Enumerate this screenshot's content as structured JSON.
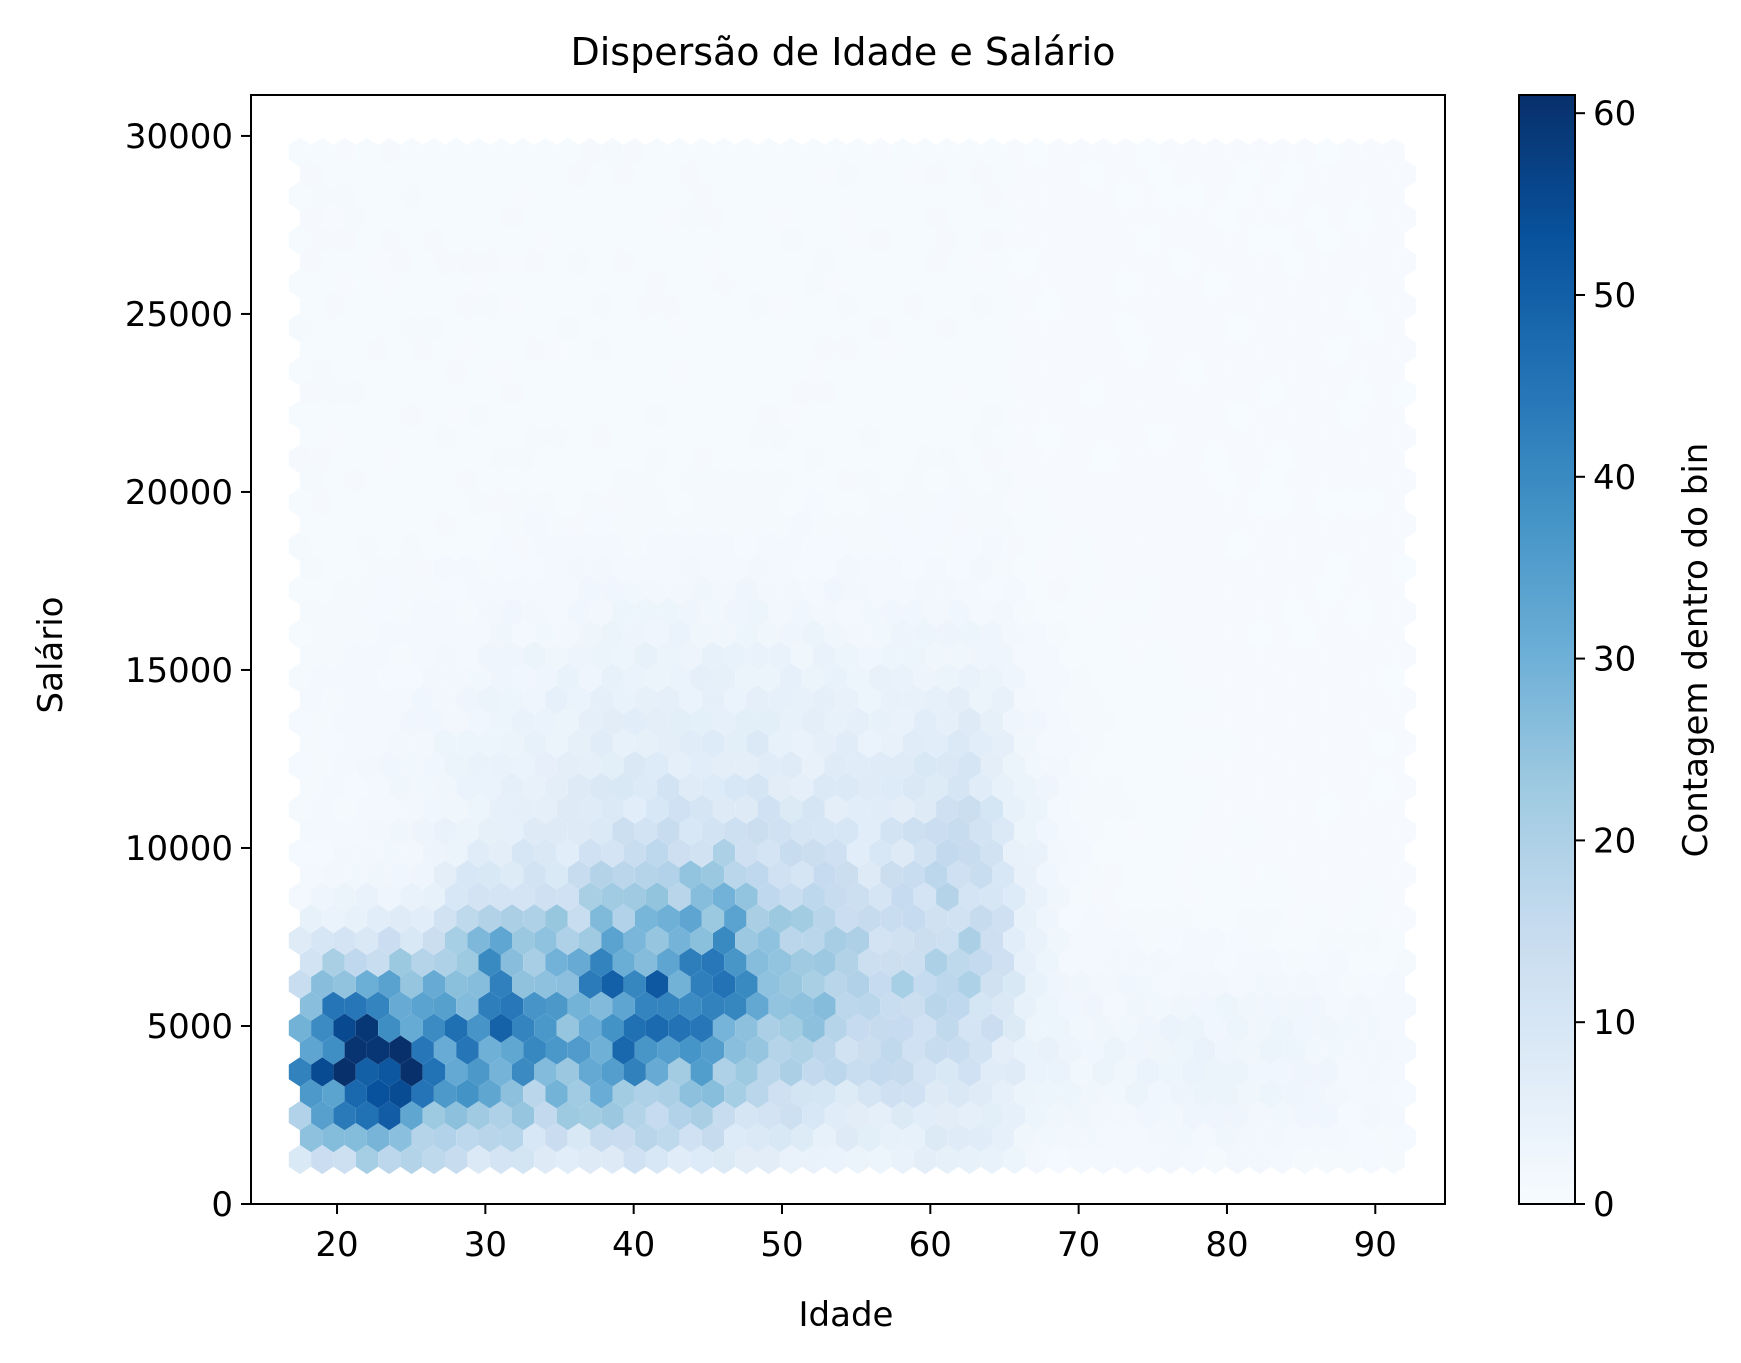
{
  "chart_data": {
    "type": "hexbin",
    "title": "Dispersão de Idade e Salário",
    "xlabel": "Idade",
    "ylabel": "Salário",
    "colorbar_label": "Contagem dentro do bin",
    "xlim": [
      14.2,
      94.7
    ],
    "ylim": [
      0,
      31150
    ],
    "xticks": [
      20,
      30,
      40,
      50,
      60,
      70,
      80,
      90
    ],
    "yticks": [
      0,
      5000,
      10000,
      15000,
      20000,
      25000,
      30000
    ],
    "xtick_labels": [
      "20",
      "30",
      "40",
      "50",
      "60",
      "70",
      "80",
      "90"
    ],
    "ytick_labels": [
      "0",
      "5000",
      "10000",
      "15000",
      "20000",
      "25000",
      "30000"
    ],
    "colorbar_range": [
      0,
      61
    ],
    "colorbar_ticks": [
      0,
      10,
      20,
      30,
      40,
      50,
      60
    ],
    "colorbar_tick_labels": [
      "0",
      "10",
      "20",
      "30",
      "40",
      "50",
      "60"
    ],
    "colormap": "Blues",
    "colormap_stops": [
      "#f7fbff",
      "#deebf7",
      "#c6dbef",
      "#9ecae1",
      "#6baed6",
      "#4292c6",
      "#2171b5",
      "#08519c",
      "#08306b"
    ],
    "grid": false,
    "hex_grid": {
      "x_min": 17.5,
      "x_max": 92.0,
      "dx": 1.505,
      "y_min": 1250,
      "y_max": 30000,
      "dy": 615
    },
    "density_regions": [
      {
        "age": [
          17.5,
          65.5
        ],
        "salary": [
          1250,
          30000
        ],
        "base_count": 0.6
      },
      {
        "age": [
          65.5,
          92.0
        ],
        "salary": [
          1250,
          30000
        ],
        "base_count": 0.3
      }
    ],
    "clusters": [
      {
        "age_center": 22,
        "salary_center": 4000,
        "age_spread": 4.2,
        "salary_spread": 1800,
        "peak_count": 60
      },
      {
        "age_center": 30.5,
        "salary_center": 5200,
        "age_spread": 2.6,
        "salary_spread": 2200,
        "peak_count": 28
      },
      {
        "age_center": 38,
        "salary_center": 5200,
        "age_spread": 4.5,
        "salary_spread": 2400,
        "peak_count": 30
      },
      {
        "age_center": 45,
        "salary_center": 6000,
        "age_spread": 4.5,
        "salary_spread": 2600,
        "peak_count": 25
      },
      {
        "age_center": 54,
        "salary_center": 5800,
        "age_spread": 5.0,
        "salary_spread": 2600,
        "peak_count": 14
      },
      {
        "age_center": 62,
        "salary_center": 7500,
        "age_spread": 3.0,
        "salary_spread": 4000,
        "peak_count": 12
      },
      {
        "age_center": 45,
        "salary_center": 12000,
        "age_spread": 12.0,
        "salary_spread": 3200,
        "peak_count": 6
      },
      {
        "age_center": 78,
        "salary_center": 4000,
        "age_spread": 10.0,
        "salary_spread": 2000,
        "peak_count": 3
      }
    ]
  }
}
